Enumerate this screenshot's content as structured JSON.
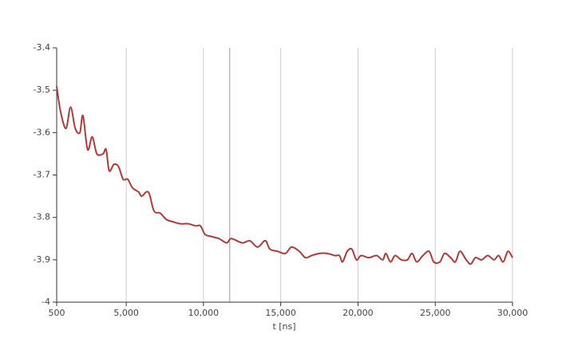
{
  "chart_data": {
    "type": "line",
    "x_label": "t [ns]",
    "x": [
      500,
      750,
      1100,
      1400,
      1700,
      2000,
      2200,
      2500,
      2800,
      3100,
      3500,
      3700,
      3900,
      4200,
      4500,
      4800,
      5100,
      5400,
      5800,
      6000,
      6300,
      6500,
      6800,
      7200,
      7600,
      8000,
      8500,
      9000,
      9500,
      9800,
      10100,
      10500,
      11000,
      11500,
      11800,
      12500,
      13000,
      13500,
      14000,
      14300,
      14800,
      15300,
      15700,
      16200,
      16600,
      17000,
      17500,
      18000,
      18500,
      18800,
      19000,
      19300,
      19600,
      19900,
      20200,
      20700,
      21200,
      21600,
      21800,
      22100,
      22400,
      22800,
      23200,
      23500,
      23800,
      24200,
      24600,
      24900,
      25300,
      25600,
      26000,
      26300,
      26600,
      27000,
      27300,
      27600,
      28000,
      28400,
      28800,
      29100,
      29400,
      29700,
      30000
    ],
    "series": [
      {
        "color": "#b03a36",
        "values": [
          -3.49,
          -3.55,
          -3.59,
          -3.54,
          -3.59,
          -3.6,
          -3.56,
          -3.64,
          -3.61,
          -3.65,
          -3.65,
          -3.64,
          -3.69,
          -3.675,
          -3.68,
          -3.71,
          -3.71,
          -3.73,
          -3.74,
          -3.75,
          -3.74,
          -3.745,
          -3.785,
          -3.79,
          -3.805,
          -3.81,
          -3.815,
          -3.815,
          -3.82,
          -3.82,
          -3.84,
          -3.845,
          -3.85,
          -3.86,
          -3.85,
          -3.86,
          -3.855,
          -3.87,
          -3.855,
          -3.875,
          -3.88,
          -3.885,
          -3.87,
          -3.88,
          -3.895,
          -3.89,
          -3.885,
          -3.885,
          -3.89,
          -3.89,
          -3.905,
          -3.88,
          -3.875,
          -3.9,
          -3.89,
          -3.895,
          -3.89,
          -3.9,
          -3.885,
          -3.905,
          -3.89,
          -3.9,
          -3.9,
          -3.885,
          -3.905,
          -3.89,
          -3.88,
          -3.905,
          -3.905,
          -3.885,
          -3.895,
          -3.905,
          -3.88,
          -3.9,
          -3.91,
          -3.895,
          -3.9,
          -3.89,
          -3.9,
          -3.89,
          -3.905,
          -3.88,
          -3.895
        ]
      }
    ],
    "xlim": [
      500,
      30000
    ],
    "xticks": [
      500,
      {
        "value": 5000,
        "label": "5,000"
      },
      {
        "value": 10000,
        "label": "10,000"
      },
      {
        "value": 15000,
        "label": "15,000"
      },
      {
        "value": 20000,
        "label": "20,000"
      },
      {
        "value": 25000,
        "label": "25,000"
      },
      {
        "value": 30000,
        "label": "30,000"
      }
    ],
    "ylim": [
      -4,
      -3.4
    ],
    "yticks": [
      -4,
      -3.9,
      -3.8,
      -3.7,
      -3.6,
      -3.5,
      -3.4
    ],
    "crosshair_x": 11700,
    "grid": true
  }
}
